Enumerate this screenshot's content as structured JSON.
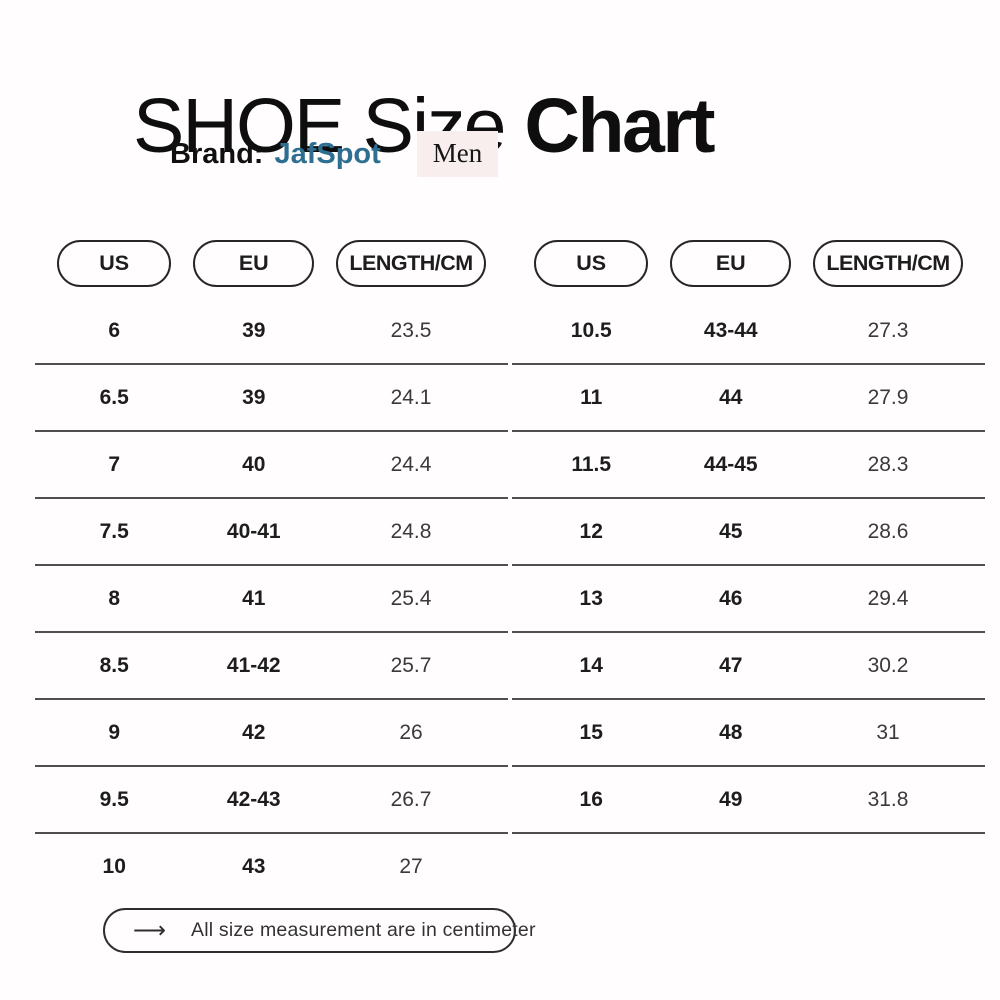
{
  "header": {
    "title_regular": "SHOE Size",
    "title_bold": "Chart",
    "brand_label": "Brand:",
    "brand_name": "JafSpot",
    "category_tag": "Men"
  },
  "tables": {
    "left": {
      "headers": [
        "US",
        "EU",
        "LENGTH/CM"
      ],
      "rows": [
        [
          "6",
          "39",
          "23.5"
        ],
        [
          "6.5",
          "39",
          "24.1"
        ],
        [
          "7",
          "40",
          "24.4"
        ],
        [
          "7.5",
          "40-41",
          "24.8"
        ],
        [
          "8",
          "41",
          "25.4"
        ],
        [
          "8.5",
          "41-42",
          "25.7"
        ],
        [
          "9",
          "42",
          "26"
        ],
        [
          "9.5",
          "42-43",
          "26.7"
        ],
        [
          "10",
          "43",
          "27"
        ]
      ]
    },
    "right": {
      "headers": [
        "US",
        "EU",
        "LENGTH/CM"
      ],
      "rows": [
        [
          "10.5",
          "43-44",
          "27.3"
        ],
        [
          "11",
          "44",
          "27.9"
        ],
        [
          "11.5",
          "44-45",
          "28.3"
        ],
        [
          "12",
          "45",
          "28.6"
        ],
        [
          "13",
          "46",
          "29.4"
        ],
        [
          "14",
          "47",
          "30.2"
        ],
        [
          "15",
          "48",
          "31"
        ],
        [
          "16",
          "49",
          "31.8"
        ]
      ]
    }
  },
  "footnote": {
    "arrow": "⟶",
    "text": "All size measurement are in centimeter"
  },
  "colors": {
    "brand_accent": "#2e6f91",
    "tag_background": "#f9eeee",
    "divider": "#4f4f4f",
    "text_primary": "#1d1d1d",
    "text_secondary": "#3a3a3a"
  },
  "chart_data": {
    "type": "table",
    "title": "SHOE Size Chart",
    "brand": "JafSpot",
    "category": "Men",
    "columns": [
      "US",
      "EU",
      "LENGTH/CM"
    ],
    "rows": [
      [
        "6",
        "39",
        "23.5"
      ],
      [
        "6.5",
        "39",
        "24.1"
      ],
      [
        "7",
        "40",
        "24.4"
      ],
      [
        "7.5",
        "40-41",
        "24.8"
      ],
      [
        "8",
        "41",
        "25.4"
      ],
      [
        "8.5",
        "41-42",
        "25.7"
      ],
      [
        "9",
        "42",
        "26"
      ],
      [
        "9.5",
        "42-43",
        "26.7"
      ],
      [
        "10",
        "43",
        "27"
      ],
      [
        "10.5",
        "43-44",
        "27.3"
      ],
      [
        "11",
        "44",
        "27.9"
      ],
      [
        "11.5",
        "44-45",
        "28.3"
      ],
      [
        "12",
        "45",
        "28.6"
      ],
      [
        "13",
        "46",
        "29.4"
      ],
      [
        "14",
        "47",
        "30.2"
      ],
      [
        "15",
        "48",
        "31"
      ],
      [
        "16",
        "49",
        "31.8"
      ]
    ],
    "footnote": "All size measurement are in centimeter",
    "unit": "centimeter"
  }
}
